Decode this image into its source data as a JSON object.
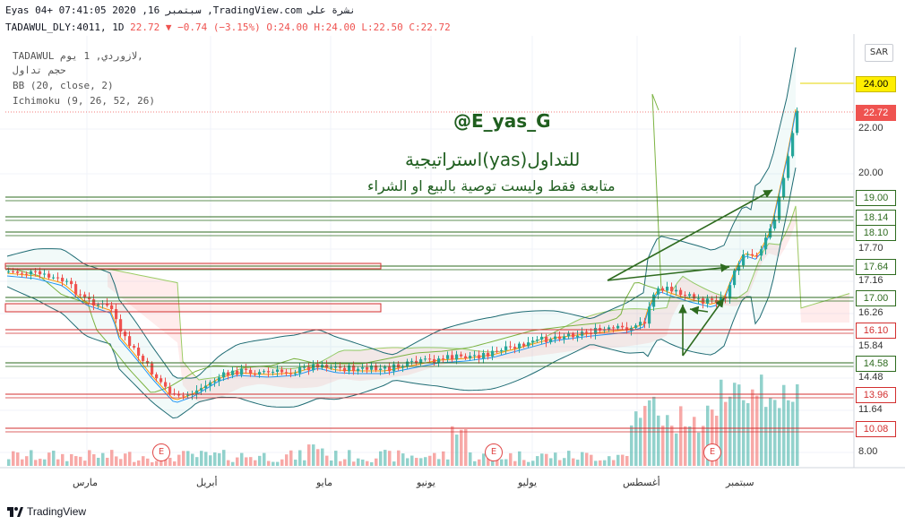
{
  "header": {
    "line1": "Eyas 04+ 07:41:05 2020 ,16 سبتمبر ,TradingView.com نشرة على",
    "symbol": "TADAWUL_DLY:4011, 1D",
    "last": "22.72",
    "change": "−0.74 (−3.15%)",
    "ohlc_o": "O:24.00",
    "ohlc_h": "H:24.00",
    "ohlc_l": "L:22.50",
    "ohlc_c": "C:22.72"
  },
  "indicators": {
    "line1": "TADAWUL لازوردي, 1 يوم,",
    "line2": "حجم تداول",
    "line3": "BB (20, close, 2)",
    "line4": "Ichimoku (9, 26, 52, 26)"
  },
  "currency_badge": "SAR",
  "annotations": {
    "handle": "@E_yas_G",
    "strategy": "استراتيجية(yas)للتداول",
    "disclaimer": "متابعة فقط وليست توصية بالبيع او الشراء"
  },
  "event_marker": "E",
  "branding": "TradingView",
  "colors": {
    "up": "#26a69a",
    "down": "#ef5350",
    "level_green": "#2e6b1f",
    "level_red": "#d32f2f"
  },
  "chart_data": {
    "type": "candlestick",
    "y_ticks": [
      "22.00",
      "20.00",
      "17.70",
      "17.16",
      "16.26",
      "15.84",
      "14.48",
      "11.64",
      "8.00"
    ],
    "price_levels": [
      {
        "value": "24.00",
        "style": "high"
      },
      {
        "value": "22.72",
        "style": "last"
      },
      {
        "value": "19.00",
        "style": "green"
      },
      {
        "value": "18.14",
        "style": "green"
      },
      {
        "value": "18.10",
        "style": "green"
      },
      {
        "value": "17.64",
        "style": "green"
      },
      {
        "value": "17.00",
        "style": "green"
      },
      {
        "value": "16.10",
        "style": "red"
      },
      {
        "value": "14.58",
        "style": "green"
      },
      {
        "value": "13.96",
        "style": "red"
      },
      {
        "value": "10.08",
        "style": "red"
      }
    ],
    "x_labels": [
      "مارس",
      "أبريل",
      "مايو",
      "يونيو",
      "يوليو",
      "أغسطس",
      "سبتمبر"
    ],
    "bollinger": "BB (20, close, 2)",
    "ichimoku": "Ichimoku (9, 26, 52, 26)",
    "ohlc_last": {
      "open": 24.0,
      "high": 24.0,
      "low": 22.5,
      "close": 22.72
    }
  }
}
